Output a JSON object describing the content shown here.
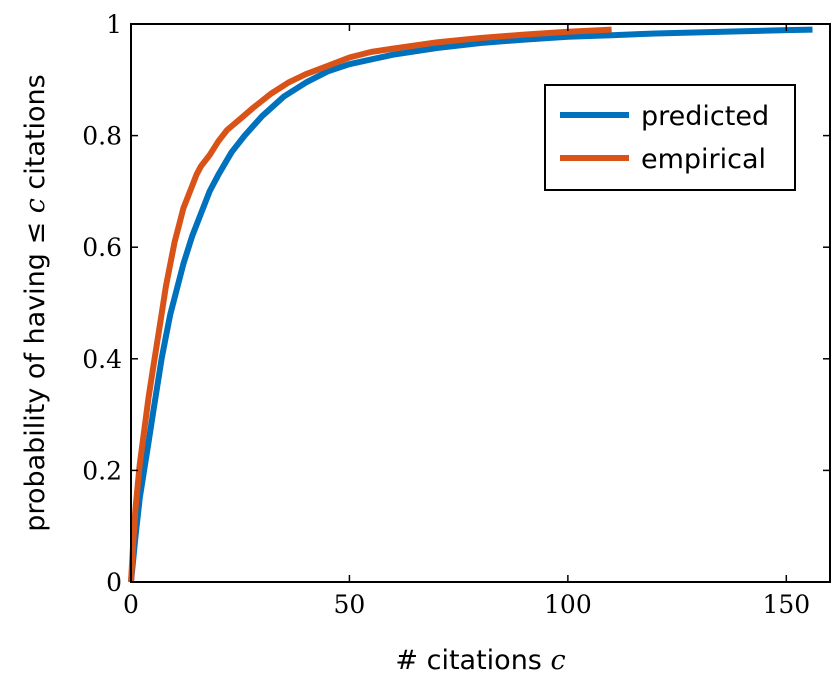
{
  "chart_data": {
    "type": "line",
    "xlabel": "# citations c",
    "xlabel_prefix": "# citations ",
    "xlabel_var": "c",
    "ylabel": "probability of having ≤ c citations",
    "ylabel_prefix": "probability of having ≤ ",
    "ylabel_var": "c",
    "ylabel_suffix": " citations",
    "xlim": [
      0,
      160
    ],
    "ylim": [
      0,
      1
    ],
    "xticks": [
      0,
      50,
      100,
      150
    ],
    "yticks": [
      0,
      0.2,
      0.4,
      0.6,
      0.8,
      1
    ],
    "ytick_labels": [
      "0",
      "0.2",
      "0.4",
      "0.6",
      "0.8",
      "1"
    ],
    "grid": false,
    "legend_position": "top-right",
    "series": [
      {
        "name": "predicted",
        "color": "#0072BD",
        "x": [
          0,
          1,
          2,
          3,
          4,
          5,
          6,
          7,
          8,
          9,
          10,
          12,
          14,
          16,
          18,
          20,
          23,
          26,
          30,
          35,
          40,
          45,
          50,
          60,
          70,
          80,
          90,
          100,
          110,
          120,
          130,
          140,
          150,
          156
        ],
        "y": [
          0,
          0.08,
          0.15,
          0.2,
          0.25,
          0.3,
          0.35,
          0.4,
          0.44,
          0.48,
          0.51,
          0.57,
          0.62,
          0.66,
          0.7,
          0.73,
          0.77,
          0.8,
          0.835,
          0.87,
          0.895,
          0.915,
          0.928,
          0.945,
          0.957,
          0.966,
          0.972,
          0.977,
          0.98,
          0.983,
          0.985,
          0.987,
          0.989,
          0.99
        ]
      },
      {
        "name": "empirical",
        "color": "#D95319",
        "x": [
          0,
          0.5,
          1,
          2,
          3,
          4,
          5,
          6,
          7,
          8,
          9,
          10,
          11,
          12,
          13,
          14,
          15,
          16,
          18,
          20,
          22,
          25,
          28,
          32,
          36,
          40,
          45,
          50,
          55,
          60,
          70,
          80,
          90,
          100,
          110
        ],
        "y": [
          0,
          0.07,
          0.13,
          0.21,
          0.27,
          0.33,
          0.38,
          0.43,
          0.48,
          0.53,
          0.57,
          0.61,
          0.64,
          0.67,
          0.69,
          0.71,
          0.73,
          0.745,
          0.765,
          0.79,
          0.81,
          0.83,
          0.85,
          0.875,
          0.895,
          0.91,
          0.925,
          0.94,
          0.95,
          0.956,
          0.967,
          0.975,
          0.981,
          0.986,
          0.99
        ]
      }
    ]
  }
}
